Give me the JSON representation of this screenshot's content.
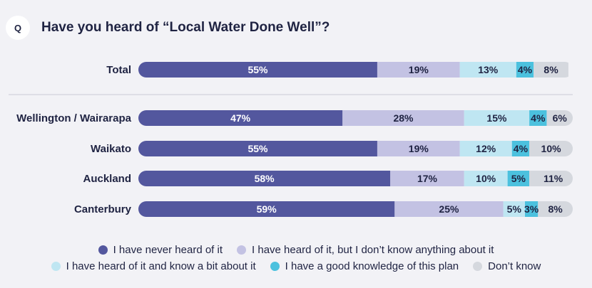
{
  "question_badge": "Q",
  "title": "Have you heard of “Local Water Done Well”?",
  "chart_data": {
    "type": "bar",
    "orientation": "horizontal",
    "stacked": true,
    "title": "Have you heard of “Local Water Done Well”?",
    "categories": [
      "Total",
      "Wellington / Wairarapa",
      "Waikato",
      "Auckland",
      "Canterbury"
    ],
    "series": [
      {
        "name": "I have never heard of it",
        "color": "#53579e",
        "values": [
          55,
          47,
          55,
          58,
          59
        ]
      },
      {
        "name": "I have heard of it, but I don’t know anything about it",
        "color": "#c3c2e3",
        "values": [
          19,
          28,
          19,
          17,
          25
        ]
      },
      {
        "name": "I have heard of it and know a bit about it",
        "color": "#bfe6f2",
        "values": [
          13,
          15,
          12,
          10,
          5
        ]
      },
      {
        "name": "I have a good knowledge of this plan",
        "color": "#4cc1de",
        "values": [
          4,
          4,
          4,
          5,
          3
        ]
      },
      {
        "name": "Don’t know",
        "color": "#d5d8de",
        "values": [
          8,
          6,
          10,
          11,
          8
        ]
      }
    ],
    "value_labels": [
      [
        "55%",
        "19%",
        "13%",
        "4%",
        "8%"
      ],
      [
        "47%",
        "28%",
        "15%",
        "4%",
        "6%"
      ],
      [
        "55%",
        "19%",
        "12%",
        "4%",
        "10%"
      ],
      [
        "58%",
        "17%",
        "10%",
        "5%",
        "11%"
      ],
      [
        "59%",
        "25%",
        "5%",
        "3%",
        "8%"
      ]
    ],
    "xlim": [
      0,
      100
    ],
    "legend_position": "bottom"
  },
  "legend": {
    "row1": [
      {
        "label": "I have never heard of it",
        "color": "#53579e"
      },
      {
        "label": "I have heard of it, but I don’t know anything about it",
        "color": "#c3c2e3"
      }
    ],
    "row2": [
      {
        "label": "I have heard of it and know a bit about it",
        "color": "#bfe6f2"
      },
      {
        "label": "I have a good knowledge of this plan",
        "color": "#4cc1de"
      },
      {
        "label": "Don’t know",
        "color": "#d5d8de"
      }
    ]
  }
}
